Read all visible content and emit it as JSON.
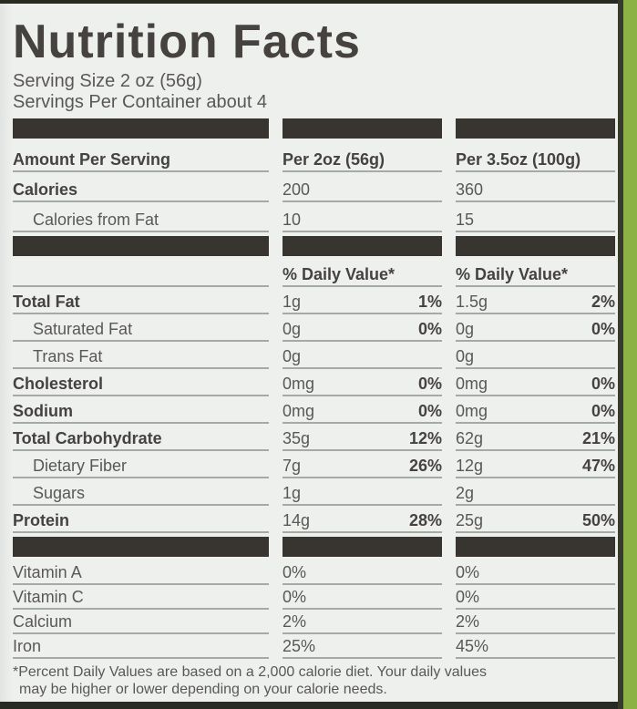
{
  "colors": {
    "label_bg": "#eef0ee",
    "bar": "#383430",
    "text_bold": "#454240",
    "text_regular": "#5a5855",
    "rule_line": "#a7a9a6",
    "package_dark": "#272b21",
    "green_strip": "#8cb246",
    "edge_line": "#363b2b"
  },
  "header": {
    "title": "Nutrition Facts",
    "serving_size": "Serving Size 2 oz (56g)",
    "servings_per_container": "Servings Per Container about 4"
  },
  "table": {
    "column_headers": [
      "Amount Per Serving",
      "Per 2oz (56g)",
      "Per 3.5oz (100g)"
    ],
    "rows": [
      {
        "kind": "bar"
      },
      {
        "kind": "item",
        "section": "head",
        "label": "Amount Per Serving",
        "bold": true,
        "c2": {
          "amt": "Per 2oz (56g)",
          "amt_bold": true
        },
        "c3": {
          "amt": "Per 3.5oz (100g)",
          "amt_bold": true
        }
      },
      {
        "kind": "item",
        "section": "head",
        "label": "Calories",
        "bold": true,
        "c2": {
          "amt": "200"
        },
        "c3": {
          "amt": "360"
        }
      },
      {
        "kind": "item",
        "section": "head",
        "label": "Calories from Fat",
        "indent": true,
        "c2": {
          "amt": "10"
        },
        "c3": {
          "amt": "15"
        }
      },
      {
        "kind": "bar"
      },
      {
        "kind": "item",
        "section": "main",
        "label": "",
        "c2": {
          "amt": "% Daily Value*",
          "amt_bold": true
        },
        "c3": {
          "amt": "% Daily Value*",
          "amt_bold": true
        }
      },
      {
        "kind": "item",
        "section": "main",
        "label": "Total Fat",
        "bold": true,
        "c2": {
          "amt": "1g",
          "pct": "1%"
        },
        "c3": {
          "amt": "1.5g",
          "pct": "2%"
        }
      },
      {
        "kind": "item",
        "section": "main",
        "label": "Saturated Fat",
        "indent": true,
        "c2": {
          "amt": "0g",
          "pct": "0%"
        },
        "c3": {
          "amt": "0g",
          "pct": "0%"
        }
      },
      {
        "kind": "item",
        "section": "main",
        "label": "Trans Fat",
        "indent": true,
        "c2": {
          "amt": "0g"
        },
        "c3": {
          "amt": "0g"
        }
      },
      {
        "kind": "item",
        "section": "main",
        "label": "Cholesterol",
        "bold": true,
        "c2": {
          "amt": "0mg",
          "pct": "0%"
        },
        "c3": {
          "amt": "0mg",
          "pct": "0%"
        }
      },
      {
        "kind": "item",
        "section": "main",
        "label": "Sodium",
        "bold": true,
        "c2": {
          "amt": "0mg",
          "pct": "0%"
        },
        "c3": {
          "amt": "0mg",
          "pct": "0%"
        }
      },
      {
        "kind": "item",
        "section": "main",
        "label": "Total Carbohydrate",
        "bold": true,
        "c2": {
          "amt": "35g",
          "pct": "12%"
        },
        "c3": {
          "amt": "62g",
          "pct": "21%"
        }
      },
      {
        "kind": "item",
        "section": "main",
        "label": "Dietary Fiber",
        "indent": true,
        "c2": {
          "amt": "7g",
          "pct": "26%"
        },
        "c3": {
          "amt": "12g",
          "pct": "47%"
        }
      },
      {
        "kind": "item",
        "section": "main",
        "label": "Sugars",
        "indent": true,
        "c2": {
          "amt": "1g"
        },
        "c3": {
          "amt": "2g"
        }
      },
      {
        "kind": "item",
        "section": "main",
        "label": "Protein",
        "bold": true,
        "c2": {
          "amt": "14g",
          "pct": "28%"
        },
        "c3": {
          "amt": "25g",
          "pct": "50%"
        }
      },
      {
        "kind": "bar"
      },
      {
        "kind": "item",
        "section": "vitamins",
        "label": "Vitamin A",
        "c2": {
          "amt": "0%"
        },
        "c3": {
          "amt": "0%"
        }
      },
      {
        "kind": "item",
        "section": "vitamins",
        "label": "Vitamin C",
        "c2": {
          "amt": "0%"
        },
        "c3": {
          "amt": "0%"
        }
      },
      {
        "kind": "item",
        "section": "vitamins",
        "label": "Calcium",
        "c2": {
          "amt": "2%"
        },
        "c3": {
          "amt": "2%"
        }
      },
      {
        "kind": "item",
        "section": "vitamins",
        "label": "Iron",
        "c2": {
          "amt": "25%"
        },
        "c3": {
          "amt": "45%"
        }
      }
    ]
  },
  "footnote": {
    "line1": "*Percent Daily Values are based on a 2,000 calorie diet. Your daily values",
    "line2": "may be higher or lower depending on your calorie needs."
  }
}
